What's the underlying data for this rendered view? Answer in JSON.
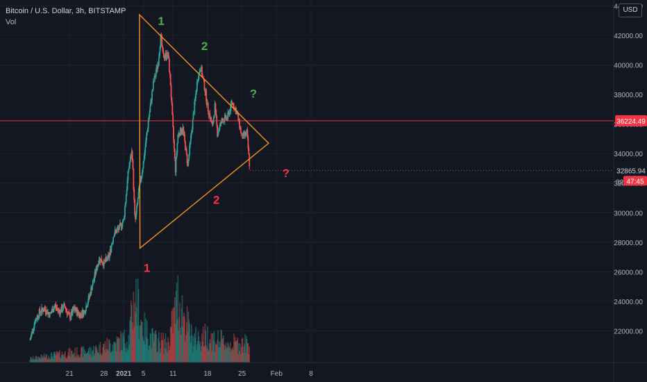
{
  "header": {
    "title": "Bitcoin / U.S. Dollar, 3h, BITSTAMP",
    "indicator": "Vol",
    "currency": "USD"
  },
  "price_tags": {
    "resistance_value": "36224.49",
    "current_value": "32865.94",
    "countdown": "47:45",
    "partial_tick": "32"
  },
  "annotations": {
    "green_1": "1",
    "green_2": "2",
    "green_q": "?",
    "red_1": "1",
    "red_2": "2",
    "red_q": "?"
  },
  "colors": {
    "background": "#131722",
    "up": "#26a69a",
    "down": "#ef5350",
    "triangle": "#f7931a",
    "resistance": "#f23645",
    "green_label": "#4caf50",
    "red_label": "#f23645"
  },
  "chart_data": {
    "type": "candlestick",
    "ylim": [
      20800,
      44300
    ],
    "y_ticks": [
      22000,
      24000,
      26000,
      28000,
      30000,
      32000,
      34000,
      36000,
      38000,
      40000,
      42000,
      44000
    ],
    "y_tick_labels": [
      "22000.00",
      "24000.00",
      "26000.00",
      "28000.00",
      "30000.00",
      "32000.00",
      "34000.00",
      "36000.00",
      "38000.00",
      "40000.00",
      "42000.00",
      "44000.00"
    ],
    "x_ticks": [
      {
        "day": 21,
        "label": "21"
      },
      {
        "day": 28,
        "label": "28"
      },
      {
        "day": 32,
        "label": "2021"
      },
      {
        "day": 36,
        "label": "5"
      },
      {
        "day": 42,
        "label": "11"
      },
      {
        "day": 49,
        "label": "18"
      },
      {
        "day": 56,
        "label": "25"
      },
      {
        "day": 63,
        "label": "Feb"
      },
      {
        "day": 70,
        "label": "8"
      }
    ],
    "price_path": [
      [
        13,
        21400
      ],
      [
        14,
        22700
      ],
      [
        15,
        23300
      ],
      [
        16,
        23500
      ],
      [
        17,
        23100
      ],
      [
        18,
        23700
      ],
      [
        19,
        23300
      ],
      [
        20,
        23700
      ],
      [
        21,
        22900
      ],
      [
        22,
        23500
      ],
      [
        23,
        23100
      ],
      [
        24,
        23300
      ],
      [
        25,
        24300
      ],
      [
        26,
        25600
      ],
      [
        27,
        26900
      ],
      [
        28,
        26600
      ],
      [
        29,
        27000
      ],
      [
        30,
        28600
      ],
      [
        31,
        28900
      ],
      [
        32,
        29500
      ],
      [
        33,
        33000
      ],
      [
        33.7,
        34200
      ],
      [
        34.3,
        29300
      ],
      [
        35,
        31300
      ],
      [
        36,
        33400
      ],
      [
        37,
        36200
      ],
      [
        38,
        38700
      ],
      [
        39,
        40200
      ],
      [
        39.5,
        41900
      ],
      [
        40,
        40600
      ],
      [
        41,
        40700
      ],
      [
        41.5,
        38700
      ],
      [
        42,
        35600
      ],
      [
        42.5,
        32900
      ],
      [
        43,
        35300
      ],
      [
        44,
        35700
      ],
      [
        45,
        33200
      ],
      [
        46,
        36200
      ],
      [
        47,
        39100
      ],
      [
        47.6,
        39900
      ],
      [
        48.5,
        38300
      ],
      [
        49,
        37200
      ],
      [
        50,
        35800
      ],
      [
        50.5,
        37200
      ],
      [
        51,
        35400
      ],
      [
        52,
        36300
      ],
      [
        53,
        36400
      ],
      [
        54,
        37500
      ],
      [
        55,
        36700
      ],
      [
        56,
        35100
      ],
      [
        57,
        35400
      ],
      [
        57.6,
        32900
      ]
    ],
    "volume_path": [
      [
        13,
        0.05
      ],
      [
        20,
        0.12
      ],
      [
        25,
        0.15
      ],
      [
        30,
        0.25
      ],
      [
        33,
        0.32
      ],
      [
        34.3,
        0.9
      ],
      [
        36,
        0.45
      ],
      [
        38,
        0.3
      ],
      [
        41,
        0.25
      ],
      [
        43,
        0.85
      ],
      [
        46,
        0.3
      ],
      [
        49,
        0.35
      ],
      [
        53,
        0.25
      ],
      [
        57.5,
        0.25
      ]
    ],
    "volume_max_pct": 0.3,
    "triangle": {
      "top_left": [
        35.2,
        43400
      ],
      "bottom_left": [
        35.3,
        27600
      ],
      "apex": [
        61.4,
        34700
      ]
    },
    "resistance_level": 36224.49,
    "current_price": 32865.94
  }
}
